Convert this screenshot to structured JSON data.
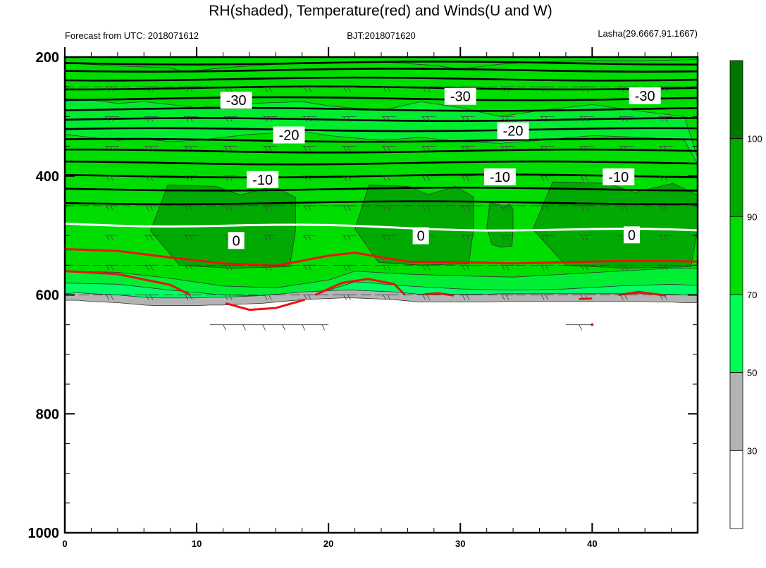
{
  "chart_data": {
    "type": "heatmap",
    "title": "RH(shaded), Temperature(red) and Winds(U and W)",
    "subtitle_left": "Forecast from UTC: 2018071612",
    "subtitle_center": "BJT:2018071620",
    "subtitle_right": "Lasha(29.6667,91.1667)",
    "x_range": [
      0,
      48
    ],
    "x_ticks": [
      0,
      10,
      20,
      30,
      40
    ],
    "y_range": [
      200,
      1000
    ],
    "y_ticks": [
      200,
      400,
      600,
      800,
      1000
    ],
    "rh_levels": [
      30,
      50,
      70,
      90,
      100
    ],
    "rh_colors": [
      "#ffffff",
      "#b3b3b3",
      "#00ff55",
      "#00dd00",
      "#00aa00",
      "#007700"
    ],
    "surface_pressure": [
      606,
      606,
      608,
      609,
      610,
      612,
      614,
      615,
      615,
      615,
      615,
      614,
      614,
      613,
      612,
      611,
      609,
      607,
      605,
      604,
      603,
      602,
      602,
      603,
      604,
      605,
      607,
      609,
      609,
      609,
      609,
      609,
      609,
      608,
      608,
      608,
      608,
      608,
      608,
      608,
      608,
      608,
      608,
      608,
      608,
      609,
      609,
      610,
      610
    ],
    "rh_moist_regions": [
      {
        "x": [
          6.5,
          17.5
        ],
        "p": [
          415,
          555
        ],
        "rh": 92
      },
      {
        "x": [
          22.0,
          31.0
        ],
        "p": [
          415,
          550
        ],
        "rh": 92
      },
      {
        "x": [
          32.0,
          34.0
        ],
        "p": [
          445,
          520
        ],
        "rh": 91
      },
      {
        "x": [
          35.5,
          48.0
        ],
        "p": [
          410,
          555
        ],
        "rh": 92
      }
    ],
    "temperature_contours": [
      {
        "label": "-30",
        "p": [
          265,
          265
        ]
      },
      {
        "label": "-20",
        "p": [
          325,
          320
        ]
      },
      {
        "label": "-10",
        "p": [
          400,
          395
        ]
      },
      {
        "label": "0",
        "p": [
          480,
          493
        ]
      }
    ],
    "temperature_labels": [
      {
        "value": "-30",
        "x": 13,
        "p": [
          270,
          275
        ]
      },
      {
        "value": "-30",
        "x": 30,
        "p": [
          265,
          267
        ]
      },
      {
        "value": "-30",
        "x": 44,
        "p": [
          264,
          266
        ]
      },
      {
        "value": "-20",
        "x": 17,
        "p": [
          329,
          333
        ]
      },
      {
        "value": "-20",
        "x": 34,
        "p": [
          323,
          325
        ]
      },
      {
        "value": "-10",
        "x": 15,
        "p": [
          405,
          407
        ]
      },
      {
        "value": "-10",
        "x": 33,
        "p": [
          400,
          403
        ]
      },
      {
        "value": "-10",
        "x": 42,
        "p": [
          400,
          403
        ]
      },
      {
        "value": "0",
        "x": 13,
        "p": [
          505,
          512
        ]
      },
      {
        "value": "0",
        "x": 27,
        "p": [
          498,
          503
        ]
      },
      {
        "value": "0",
        "x": 43,
        "p": [
          497,
          501
        ]
      }
    ],
    "black_isotherm_pressures": [
      210,
      222,
      237,
      252,
      270,
      288,
      305,
      322,
      340,
      358,
      378,
      400,
      422,
      445
    ],
    "red_temperature_lines": [
      {
        "x": [
          0,
          4,
          8,
          12,
          16,
          20,
          22,
          26,
          30,
          34,
          38,
          42,
          46,
          48
        ],
        "p": [
          523,
          526,
          537,
          547,
          551,
          534,
          529,
          544,
          545,
          547,
          545,
          543,
          543,
          544
        ]
      },
      {
        "x": [
          0,
          4,
          8,
          9.5
        ],
        "p": [
          560,
          565,
          583,
          600
        ]
      },
      {
        "x": [
          19,
          21,
          23,
          25,
          25.8
        ],
        "p": [
          600,
          580,
          573,
          582,
          600
        ]
      },
      {
        "x": [
          12.2,
          14,
          16,
          18.2
        ],
        "p": [
          614,
          625,
          622,
          608
        ]
      },
      {
        "x": [
          27.3,
          28.3,
          29.5
        ],
        "p": [
          599,
          597,
          601
        ]
      },
      {
        "x": [
          39,
          40
        ],
        "p": [
          607,
          606
        ]
      },
      {
        "x": [
          42,
          43.5,
          45.6
        ],
        "p": [
          600,
          595,
          601
        ]
      }
    ],
    "wind_barb_levels": [
      250,
      300,
      350,
      400,
      450,
      500,
      550,
      600
    ],
    "wind_barb_columns": [
      4,
      7,
      10,
      13,
      16,
      19,
      22,
      25,
      28,
      31,
      34,
      37,
      40,
      43,
      46
    ],
    "colorbar_labels": [
      "30",
      "50",
      "70",
      "90",
      "100"
    ]
  }
}
